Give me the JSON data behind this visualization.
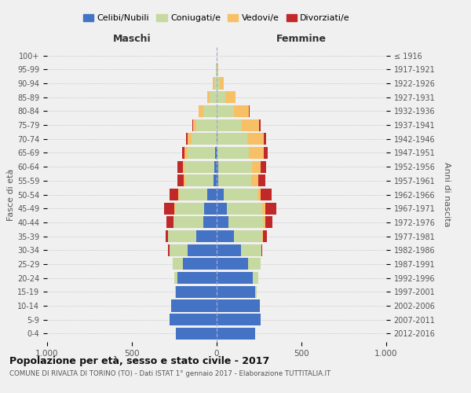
{
  "age_groups": [
    "0-4",
    "5-9",
    "10-14",
    "15-19",
    "20-24",
    "25-29",
    "30-34",
    "35-39",
    "40-44",
    "45-49",
    "50-54",
    "55-59",
    "60-64",
    "65-69",
    "70-74",
    "75-79",
    "80-84",
    "85-89",
    "90-94",
    "95-99",
    "100+"
  ],
  "birth_years": [
    "2012-2016",
    "2007-2011",
    "2002-2006",
    "1997-2001",
    "1992-1996",
    "1987-1991",
    "1982-1986",
    "1977-1981",
    "1972-1976",
    "1967-1971",
    "1962-1966",
    "1957-1961",
    "1952-1956",
    "1947-1951",
    "1942-1946",
    "1937-1941",
    "1932-1936",
    "1927-1931",
    "1922-1926",
    "1917-1921",
    "≤ 1916"
  ],
  "males": {
    "celibe": [
      240,
      280,
      270,
      240,
      230,
      200,
      170,
      120,
      80,
      75,
      55,
      20,
      15,
      10,
      0,
      0,
      0,
      0,
      0,
      0,
      0
    ],
    "coniugato": [
      0,
      0,
      0,
      5,
      20,
      60,
      110,
      165,
      175,
      170,
      165,
      165,
      175,
      160,
      150,
      120,
      80,
      40,
      15,
      5,
      0
    ],
    "vedovo": [
      0,
      0,
      0,
      0,
      0,
      0,
      0,
      0,
      0,
      5,
      5,
      10,
      10,
      20,
      20,
      20,
      25,
      15,
      10,
      0,
      0
    ],
    "divorziato": [
      0,
      0,
      0,
      0,
      0,
      0,
      5,
      15,
      40,
      60,
      55,
      35,
      30,
      15,
      10,
      5,
      0,
      0,
      0,
      0,
      0
    ]
  },
  "females": {
    "nubile": [
      225,
      260,
      255,
      225,
      215,
      185,
      145,
      100,
      70,
      60,
      40,
      10,
      10,
      5,
      5,
      0,
      0,
      0,
      0,
      0,
      0
    ],
    "coniugata": [
      0,
      0,
      0,
      10,
      30,
      75,
      120,
      170,
      205,
      210,
      200,
      195,
      200,
      185,
      175,
      150,
      100,
      50,
      20,
      5,
      0
    ],
    "vedova": [
      0,
      0,
      0,
      0,
      0,
      0,
      0,
      5,
      10,
      15,
      20,
      40,
      50,
      90,
      100,
      100,
      90,
      60,
      20,
      5,
      0
    ],
    "divorziata": [
      0,
      0,
      0,
      0,
      0,
      0,
      5,
      20,
      45,
      65,
      65,
      40,
      30,
      20,
      10,
      10,
      5,
      0,
      0,
      0,
      0
    ]
  },
  "colors": {
    "celibe": "#4472C4",
    "coniugato": "#C6D9A0",
    "vedovo": "#F8C066",
    "divorziato": "#C0282A"
  },
  "title": "Popolazione per età, sesso e stato civile - 2017",
  "subtitle": "COMUNE DI RIVALTA DI TORINO (TO) - Dati ISTAT 1° gennaio 2017 - Elaborazione TUTTITALIA.IT",
  "xlabel_left": "Maschi",
  "xlabel_right": "Femmine",
  "ylabel_left": "Fasce di età",
  "ylabel_right": "Anni di nascita",
  "xlim": 1000,
  "bg_color": "#f0f0f0",
  "legend_labels": [
    "Celibi/Nubili",
    "Coniugati/e",
    "Vedovi/e",
    "Divorziati/e"
  ]
}
